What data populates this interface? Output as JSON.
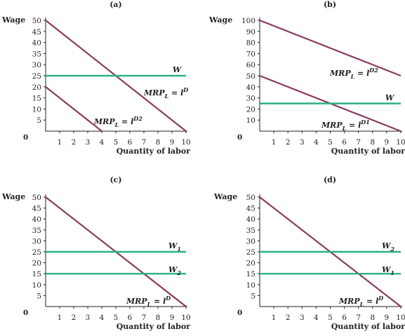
{
  "chart_data": [
    {
      "panel_label": "(a)",
      "type": "line",
      "ylabel": "Wage",
      "xlabel": "Quantity of labor",
      "xlim": [
        0,
        10
      ],
      "ylim": [
        0,
        50
      ],
      "x_ticks": [
        "1",
        "2",
        "3",
        "4",
        "5",
        "6",
        "7",
        "8",
        "9",
        "10"
      ],
      "y_ticks": [
        "5",
        "10",
        "15",
        "20",
        "25",
        "30",
        "35",
        "40",
        "45",
        "50"
      ],
      "origin_label": "0",
      "colors": {
        "demand": "#8b3a62",
        "wage": "#2bb185"
      },
      "series": [
        {
          "kind": "demand",
          "x": [
            0,
            10
          ],
          "y": [
            50,
            0
          ],
          "label_main": "MRP",
          "label_sub": "L",
          "label_eq": " = l",
          "label_sup": "D"
        },
        {
          "kind": "demand",
          "x": [
            0,
            4
          ],
          "y": [
            20,
            0
          ],
          "label_main": "MRP",
          "label_sub": "L",
          "label_eq": " = l",
          "label_sup": "D2"
        },
        {
          "kind": "wage",
          "x": [
            0,
            10
          ],
          "y": [
            25,
            25
          ],
          "label_main": "W",
          "label_sub": "",
          "label_eq": "",
          "label_sup": ""
        }
      ]
    },
    {
      "panel_label": "(b)",
      "type": "line",
      "ylabel": "Wage",
      "xlabel": "Quantity of labor",
      "xlim": [
        0,
        10
      ],
      "ylim": [
        0,
        100
      ],
      "x_ticks": [
        "1",
        "2",
        "3",
        "4",
        "5",
        "6",
        "7",
        "8",
        "9",
        "10"
      ],
      "y_ticks": [
        "10",
        "20",
        "30",
        "40",
        "50",
        "60",
        "70",
        "80",
        "90",
        "100"
      ],
      "origin_label": "0",
      "colors": {
        "demand": "#8b3a62",
        "wage": "#2bb185"
      },
      "series": [
        {
          "kind": "demand",
          "x": [
            0,
            10
          ],
          "y": [
            100,
            50
          ],
          "label_main": "MRP",
          "label_sub": "L",
          "label_eq": " = l",
          "label_sup": "D2"
        },
        {
          "kind": "demand",
          "x": [
            0,
            10
          ],
          "y": [
            50,
            0
          ],
          "label_main": "MRP",
          "label_sub": "L",
          "label_eq": " = l",
          "label_sup": "D1"
        },
        {
          "kind": "wage",
          "x": [
            0,
            10
          ],
          "y": [
            25,
            25
          ],
          "label_main": "W",
          "label_sub": "",
          "label_eq": "",
          "label_sup": ""
        }
      ]
    },
    {
      "panel_label": "(c)",
      "type": "line",
      "ylabel": "Wage",
      "xlabel": "Quantity of labor",
      "xlim": [
        0,
        10
      ],
      "ylim": [
        0,
        50
      ],
      "x_ticks": [
        "1",
        "2",
        "3",
        "4",
        "5",
        "6",
        "7",
        "8",
        "9",
        "10"
      ],
      "y_ticks": [
        "5",
        "10",
        "15",
        "20",
        "25",
        "30",
        "35",
        "40",
        "45",
        "50"
      ],
      "origin_label": "0",
      "colors": {
        "demand": "#8b3a62",
        "wage": "#2bb185"
      },
      "series": [
        {
          "kind": "demand",
          "x": [
            0,
            10
          ],
          "y": [
            50,
            0
          ],
          "label_main": "MRP",
          "label_sub": "L",
          "label_eq": " = l",
          "label_sup": "D"
        },
        {
          "kind": "wage",
          "x": [
            0,
            10
          ],
          "y": [
            25,
            25
          ],
          "label_main": "W",
          "label_sub": "1",
          "label_eq": "",
          "label_sup": ""
        },
        {
          "kind": "wage",
          "x": [
            0,
            10
          ],
          "y": [
            15,
            15
          ],
          "label_main": "W",
          "label_sub": "2",
          "label_eq": "",
          "label_sup": ""
        }
      ]
    },
    {
      "panel_label": "(d)",
      "type": "line",
      "ylabel": "Wage",
      "xlabel": "Quantity of labor",
      "xlim": [
        0,
        10
      ],
      "ylim": [
        0,
        50
      ],
      "x_ticks": [
        "1",
        "2",
        "3",
        "4",
        "5",
        "6",
        "7",
        "8",
        "9",
        "10"
      ],
      "y_ticks": [
        "5",
        "10",
        "15",
        "20",
        "25",
        "30",
        "35",
        "40",
        "45",
        "50"
      ],
      "origin_label": "0",
      "colors": {
        "demand": "#8b3a62",
        "wage": "#2bb185"
      },
      "series": [
        {
          "kind": "demand",
          "x": [
            0,
            10
          ],
          "y": [
            50,
            0
          ],
          "label_main": "MRP",
          "label_sub": "L",
          "label_eq": " = l",
          "label_sup": "D"
        },
        {
          "kind": "wage",
          "x": [
            0,
            10
          ],
          "y": [
            25,
            25
          ],
          "label_main": "W",
          "label_sub": "2",
          "label_eq": "",
          "label_sup": ""
        },
        {
          "kind": "wage",
          "x": [
            0,
            10
          ],
          "y": [
            15,
            15
          ],
          "label_main": "W",
          "label_sub": "1",
          "label_eq": "",
          "label_sup": ""
        }
      ]
    }
  ]
}
